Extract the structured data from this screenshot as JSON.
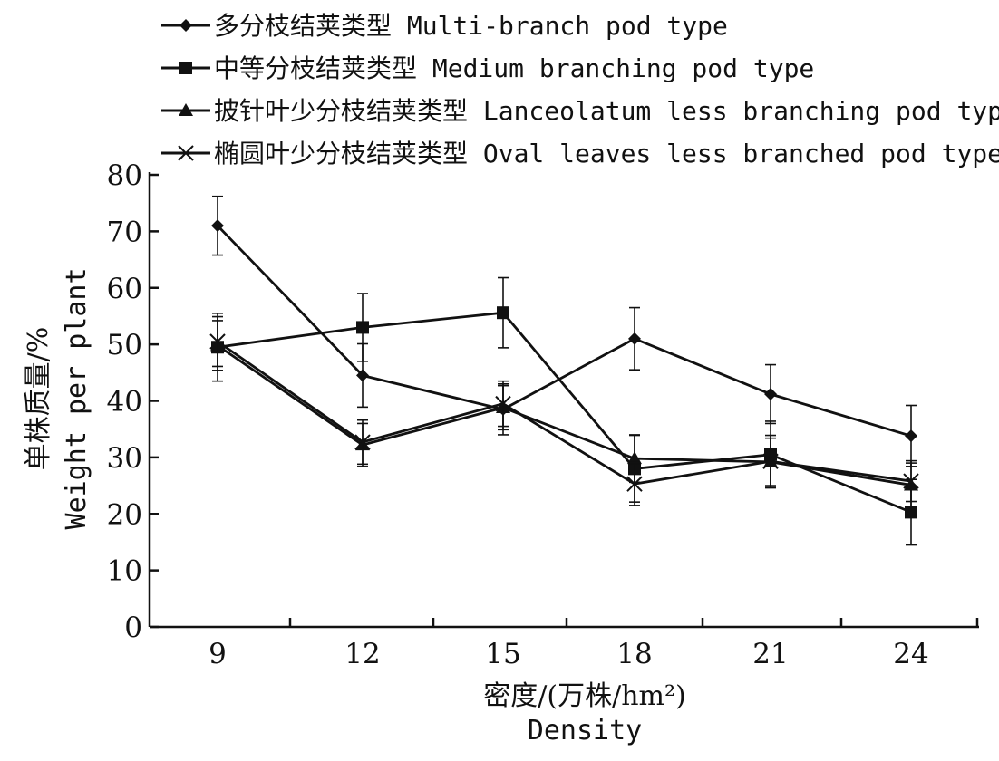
{
  "chart_data": {
    "type": "line",
    "x": [
      9,
      12,
      15,
      18,
      21,
      24
    ],
    "ylim": [
      0,
      80
    ],
    "yticks": [
      0,
      10,
      20,
      30,
      40,
      50,
      60,
      70,
      80
    ],
    "xtick_labels": [
      "9",
      "12",
      "15",
      "18",
      "21",
      "24"
    ],
    "ylabel_cn": "单株质量/%",
    "ylabel_en": "Weight per plant",
    "xlabel_cn": "密度/(万株/hm²)",
    "xlabel_en": "Density",
    "legend_position": "top",
    "grid": false,
    "series": [
      {
        "name": "多分枝结荚类型 Multi-branch pod type",
        "marker": "diamond",
        "values": [
          71,
          44.5,
          38.5,
          51,
          41.2,
          33.8
        ],
        "errors": [
          5.2,
          5.6,
          4.5,
          5.5,
          5.2,
          5.4
        ]
      },
      {
        "name": "中等分枝结荚类型 Medium branching pod type",
        "marker": "square",
        "values": [
          49.5,
          53,
          55.6,
          28,
          30.5,
          20.3
        ],
        "errors": [
          6,
          6,
          6.2,
          5.9,
          5.9,
          5.8
        ]
      },
      {
        "name": "披针叶少分枝结荚类型 Lanceolatum less branching pod type",
        "marker": "triangle",
        "values": [
          49.8,
          32.2,
          38.8,
          29.8,
          29.2,
          25.1
        ],
        "errors": [
          4.4,
          3.8,
          3.9,
          4.2,
          4.2,
          3.9
        ]
      },
      {
        "name": "椭圆叶少分枝结荚类型 Oval leaves less branched pod type",
        "marker": "x",
        "values": [
          50.5,
          32.7,
          39.5,
          25.3,
          29.3,
          25.8
        ],
        "errors": [
          4.4,
          3.9,
          4,
          3.8,
          4.6,
          3.6
        ]
      }
    ]
  }
}
